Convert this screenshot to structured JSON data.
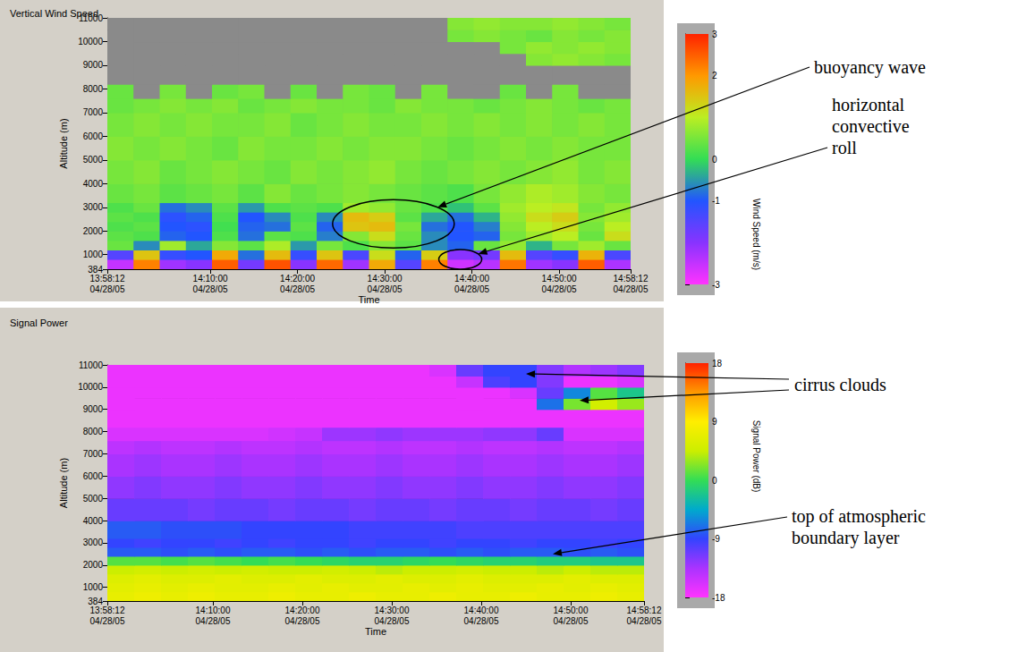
{
  "chart_data": [
    {
      "type": "heatmap",
      "title": "Vertical Wind Speed",
      "x_label": "Time",
      "y_label": "Altitude (m)",
      "xlim": [
        "13:58:12",
        "14:58:12"
      ],
      "xticks": [
        {
          "value": "13:58:12",
          "label": "13:58:12\n04/28/05"
        },
        {
          "value": "14:10:00",
          "label": "14:10:00\n04/28/05"
        },
        {
          "value": "14:20:00",
          "label": "14:20:00\n04/28/05"
        },
        {
          "value": "14:30:00",
          "label": "14:30:00\n04/28/05"
        },
        {
          "value": "14:40:00",
          "label": "14:40:00\n04/28/05"
        },
        {
          "value": "14:50:00",
          "label": "14:50:00\n04/28/05"
        },
        {
          "value": "14:58:12",
          "label": "14:58:12\n04/28/05"
        }
      ],
      "ylim": [
        384,
        11000
      ],
      "yticks": [
        384,
        1000,
        2000,
        3000,
        4000,
        5000,
        6000,
        7000,
        8000,
        9000,
        10000,
        11000
      ],
      "grid": false,
      "x": [
        "13:58:12",
        "14:01:12",
        "14:04:12",
        "14:07:12",
        "14:10:12",
        "14:13:12",
        "14:16:12",
        "14:19:12",
        "14:22:12",
        "14:25:12",
        "14:28:12",
        "14:31:12",
        "14:34:12",
        "14:37:12",
        "14:40:12",
        "14:43:12",
        "14:46:12",
        "14:49:12",
        "14:52:12",
        "14:55:12"
      ],
      "y": [
        384,
        800,
        1200,
        1600,
        2000,
        2400,
        2800,
        3200,
        4000,
        5000,
        6000,
        7000,
        7600,
        8200,
        9000,
        9500,
        10000,
        10500
      ],
      "cells": [
        [
          -2.5,
          2.2,
          -2.2,
          -2.0,
          2.5,
          -1.8,
          2.6,
          -2.0,
          2.4,
          -2.2,
          1.8,
          -1.5,
          2.2,
          -2.6,
          -2.4,
          2.3,
          -2.2,
          -2.0,
          2.5,
          -2.3
        ],
        [
          -1.5,
          1.5,
          -1.2,
          -1.0,
          1.8,
          -0.8,
          1.6,
          -1.2,
          1.5,
          -1.4,
          1.2,
          -0.9,
          1.4,
          -2.0,
          -1.8,
          1.6,
          -1.5,
          -1.2,
          1.7,
          -1.4
        ],
        [
          0.4,
          -0.6,
          0.8,
          -0.4,
          0.6,
          0.3,
          0.9,
          -0.5,
          0.5,
          0.2,
          0.6,
          0.3,
          -0.6,
          -0.9,
          0.4,
          0.7,
          -0.3,
          0.5,
          0.8,
          0.4
        ],
        [
          0.3,
          0.2,
          -0.9,
          -1.0,
          0.2,
          -0.8,
          0.3,
          0.2,
          -0.7,
          0.6,
          1.2,
          0.4,
          -0.6,
          -1.0,
          -0.9,
          0.5,
          0.8,
          1.0,
          0.4,
          1.2
        ],
        [
          0.2,
          0.3,
          -1.0,
          -1.1,
          0.1,
          -0.9,
          -0.8,
          0.3,
          -0.9,
          1.5,
          1.6,
          0.5,
          -0.8,
          -1.0,
          -0.7,
          0.6,
          1.0,
          1.2,
          0.5,
          1.0
        ],
        [
          0.3,
          0.2,
          -1.1,
          -0.9,
          0.2,
          -1.0,
          -0.6,
          0.2,
          -0.6,
          1.6,
          1.4,
          0.3,
          -0.4,
          -0.8,
          -0.3,
          0.7,
          1.2,
          1.4,
          0.6,
          0.8
        ],
        [
          0.2,
          0.4,
          -0.8,
          -0.6,
          0.3,
          -0.5,
          0.2,
          0.3,
          0.2,
          0.8,
          0.7,
          0.4,
          0.2,
          -0.2,
          0.3,
          0.8,
          1.0,
          1.1,
          0.5,
          0.7
        ],
        [
          0.4,
          0.5,
          0.3,
          0.4,
          0.5,
          0.3,
          0.6,
          0.4,
          0.5,
          0.6,
          0.5,
          0.4,
          0.3,
          0.2,
          0.5,
          0.7,
          0.9,
          0.8,
          0.6,
          0.5
        ],
        [
          0.5,
          0.6,
          0.4,
          0.5,
          0.6,
          0.5,
          0.4,
          0.6,
          0.5,
          0.6,
          0.7,
          0.5,
          0.4,
          0.5,
          0.6,
          0.5,
          0.6,
          0.7,
          0.5,
          0.6
        ],
        [
          0.6,
          0.5,
          0.6,
          0.5,
          0.4,
          0.6,
          0.5,
          0.5,
          0.6,
          0.5,
          0.6,
          0.6,
          0.5,
          0.4,
          0.5,
          0.6,
          0.5,
          0.6,
          0.5,
          0.5
        ],
        [
          0.5,
          0.6,
          0.5,
          0.6,
          0.5,
          0.5,
          0.6,
          0.4,
          0.5,
          0.6,
          0.5,
          0.5,
          0.6,
          0.5,
          0.6,
          0.5,
          0.6,
          0.5,
          0.6,
          0.5
        ],
        [
          0.4,
          0.5,
          0.6,
          0.5,
          0.6,
          0.4,
          0.5,
          0.6,
          0.5,
          0.5,
          0.4,
          0.6,
          0.5,
          0.5,
          0.4,
          0.5,
          0.6,
          0.5,
          0.4,
          0.5
        ],
        [
          0.4,
          null,
          0.5,
          null,
          0.4,
          0.5,
          null,
          0.4,
          null,
          0.5,
          0.4,
          null,
          0.5,
          null,
          null,
          0.4,
          null,
          0.5,
          null,
          null
        ],
        [
          null,
          null,
          null,
          null,
          null,
          null,
          null,
          null,
          null,
          null,
          null,
          null,
          null,
          null,
          null,
          null,
          null,
          null,
          null,
          null
        ],
        [
          null,
          null,
          null,
          null,
          null,
          null,
          null,
          null,
          null,
          null,
          null,
          null,
          null,
          null,
          null,
          null,
          0.6,
          0.7,
          0.6,
          0.5
        ],
        [
          null,
          null,
          null,
          null,
          null,
          null,
          null,
          null,
          null,
          null,
          null,
          null,
          null,
          null,
          null,
          0.5,
          0.7,
          0.6,
          0.7,
          0.6
        ],
        [
          null,
          null,
          null,
          null,
          null,
          null,
          null,
          null,
          null,
          null,
          null,
          null,
          null,
          0.5,
          0.6,
          0.5,
          0.4,
          0.6,
          0.5,
          0.6
        ],
        [
          null,
          null,
          null,
          null,
          null,
          null,
          null,
          null,
          null,
          null,
          null,
          null,
          null,
          0.6,
          0.7,
          0.6,
          0.6,
          0.7,
          0.6,
          0.5
        ]
      ],
      "colorbar": {
        "label": "Wind Speed (m/s)",
        "range": [
          -3,
          3
        ],
        "ticks": [
          -3,
          -1,
          0,
          2,
          3
        ],
        "colors": [
          "#ff33ff",
          "#8833ff",
          "#2255ff",
          "#33dd55",
          "#bbee22",
          "#ff9900",
          "#ff2200"
        ]
      },
      "annotations": [
        {
          "text": "buoyancy wave",
          "marker": "ellipse",
          "targets": [
            {
              "x": "14:31:00",
              "y": 2300
            }
          ]
        },
        {
          "text": "horizontal convective roll",
          "marker": "ellipse",
          "targets": [
            {
              "x": "14:38:40",
              "y": 800
            }
          ]
        }
      ]
    },
    {
      "type": "heatmap",
      "title": "Signal Power",
      "x_label": "Time",
      "y_label": "Altitude (m)",
      "xlim": [
        "13:58:12",
        "14:58:12"
      ],
      "xticks": [
        {
          "value": "13:58:12",
          "label": "13:58:12\n04/28/05"
        },
        {
          "value": "14:10:00",
          "label": "14:10:00\n04/28/05"
        },
        {
          "value": "14:20:00",
          "label": "14:20:00\n04/28/05"
        },
        {
          "value": "14:30:00",
          "label": "14:30:00\n04/28/05"
        },
        {
          "value": "14:40:00",
          "label": "14:40:00\n04/28/05"
        },
        {
          "value": "14:50:00",
          "label": "14:50:00\n04/28/05"
        },
        {
          "value": "14:58:12",
          "label": "14:58:12\n04/28/05"
        }
      ],
      "ylim": [
        384,
        11000
      ],
      "yticks": [
        384,
        1000,
        2000,
        3000,
        4000,
        5000,
        6000,
        7000,
        8000,
        9000,
        10000,
        11000
      ],
      "grid": false,
      "x": [
        "13:58:12",
        "14:01:12",
        "14:04:12",
        "14:07:12",
        "14:10:12",
        "14:13:12",
        "14:16:12",
        "14:19:12",
        "14:22:12",
        "14:25:12",
        "14:28:12",
        "14:31:12",
        "14:34:12",
        "14:37:12",
        "14:40:12",
        "14:43:12",
        "14:46:12",
        "14:49:12",
        "14:52:12",
        "14:55:12"
      ],
      "y": [
        384,
        800,
        1200,
        1600,
        2000,
        2400,
        2800,
        3200,
        4000,
        5000,
        6000,
        7000,
        7600,
        8200,
        9000,
        9500,
        10000,
        10500
      ],
      "cells": [
        [
          7,
          7.5,
          7,
          7.5,
          7,
          7,
          7.5,
          7,
          7,
          7.5,
          7,
          7,
          7.5,
          7,
          7,
          7.5,
          7,
          7,
          7.5,
          7
        ],
        [
          6.5,
          7,
          6.5,
          7,
          6.5,
          6.5,
          7,
          6.5,
          7,
          6.5,
          6.5,
          7,
          6.5,
          7,
          6.5,
          6.5,
          7,
          6.5,
          7,
          6.5
        ],
        [
          6,
          6.5,
          6,
          6,
          6.5,
          6,
          6,
          6.5,
          6,
          6,
          6.5,
          6,
          6,
          6.5,
          6,
          6,
          6,
          6.5,
          6,
          6
        ],
        [
          4.5,
          5,
          4.5,
          5,
          4.5,
          5,
          4.5,
          4.5,
          5,
          4.5,
          4,
          4.5,
          4.5,
          5,
          4.5,
          4.5,
          4,
          4.5,
          4,
          4
        ],
        [
          1,
          1,
          0.5,
          1,
          0.5,
          0,
          0.5,
          0,
          -0.5,
          -1,
          -1,
          -0.5,
          0,
          -0.5,
          -1,
          -1,
          -1.5,
          -1.5,
          -2,
          -2
        ],
        [
          -8,
          -8,
          -8.5,
          -8,
          -8.5,
          -8,
          -8,
          -8.5,
          -8,
          -8.5,
          -8,
          -8,
          -8.5,
          -8,
          -8.5,
          -8,
          -8,
          -8.5,
          -8,
          -8.5
        ],
        [
          -9,
          -9.5,
          -9,
          -9,
          -9.5,
          -9,
          -9.5,
          -9,
          -9,
          -9.5,
          -9,
          -9,
          -9.5,
          -9,
          -9,
          -9.5,
          -9,
          -9,
          -9.5,
          -9
        ],
        [
          -8,
          -8,
          -8.5,
          -8.5,
          -8.5,
          -9,
          -9,
          -9,
          -9,
          -9.5,
          -9.5,
          -9.5,
          -9.5,
          -10,
          -10,
          -10,
          -10,
          -10,
          -10,
          -10
        ],
        [
          -11,
          -11,
          -11,
          -11.5,
          -11,
          -11,
          -11.5,
          -11,
          -11,
          -11.5,
          -11,
          -11,
          -11.5,
          -11,
          -11,
          -11.5,
          -11,
          -11,
          -11.5,
          -11
        ],
        [
          -12.5,
          -12,
          -12.5,
          -12.5,
          -12,
          -12.5,
          -12.5,
          -12,
          -12.5,
          -12.5,
          -12,
          -12.5,
          -12.5,
          -12,
          -12.5,
          -12.5,
          -12,
          -12.5,
          -12.5,
          -12
        ],
        [
          -13.5,
          -13,
          -13.5,
          -13.5,
          -13,
          -13.5,
          -13.5,
          -13,
          -13.5,
          -13.5,
          -13,
          -13.5,
          -13.5,
          -13,
          -13.5,
          -13.5,
          -13,
          -13.5,
          -13.5,
          -13
        ],
        [
          -14.5,
          -14,
          -14.5,
          -14.5,
          -14,
          -14.5,
          -14.5,
          -14,
          -14.5,
          -14.5,
          -14,
          -14.5,
          -14.5,
          -14,
          -14.5,
          -14.5,
          -14,
          -14.5,
          -14.5,
          -14
        ],
        [
          -16,
          -16,
          -16,
          -16,
          -16,
          -16,
          -15.5,
          -15,
          -13,
          -13,
          -12.5,
          -13,
          -13,
          -13,
          -12.5,
          -12.5,
          -11,
          -16,
          -16,
          -16
        ],
        [
          -17,
          -17,
          -17,
          -17,
          -17,
          -17,
          -17,
          -17,
          -17,
          -17,
          -17,
          -17,
          -17,
          -17,
          -17,
          -17,
          -17,
          -17,
          -17,
          -17
        ],
        [
          -17,
          -17,
          -17,
          -17,
          -17,
          -17,
          -17,
          -17,
          -17,
          -17,
          -17,
          -17,
          -17,
          -17,
          -17,
          -17,
          -7,
          2,
          5,
          3
        ],
        [
          -17,
          -17,
          -17,
          -17,
          -17,
          -17,
          -17,
          -17,
          -17,
          -17,
          -17,
          -17,
          -17,
          -17,
          -17,
          -16,
          -11,
          -6,
          1,
          -2
        ],
        [
          -17,
          -17,
          -17,
          -17,
          -17,
          -17,
          -17,
          -17,
          -17,
          -17,
          -17,
          -17,
          -17,
          -15,
          -10,
          -9,
          -12,
          -17,
          -17,
          -16
        ],
        [
          -17,
          -17,
          -17,
          -17,
          -17,
          -17,
          -17,
          -17,
          -17,
          -17,
          -17,
          -17,
          -16,
          -11,
          -9,
          -9,
          -12,
          -14,
          -13,
          -12
        ]
      ],
      "colorbar": {
        "label": "Signal Power (dB)",
        "range": [
          -18,
          18
        ],
        "ticks": [
          -18,
          -9,
          0,
          9,
          18
        ],
        "colors": [
          "#ff33ff",
          "#aa33ff",
          "#3344ff",
          "#00aacc",
          "#33dd55",
          "#ccee00",
          "#ffee00",
          "#ff9900",
          "#ff2200"
        ]
      },
      "annotations": [
        {
          "text": "cirrus clouds",
          "targets": [
            {
              "x": "14:45:00",
              "y": 10600
            },
            {
              "x": "14:51:00",
              "y": 9400
            }
          ]
        },
        {
          "text": "top of atmospheric boundary layer",
          "targets": [
            {
              "x": "14:48:00",
              "y": 2500
            }
          ]
        }
      ]
    }
  ]
}
